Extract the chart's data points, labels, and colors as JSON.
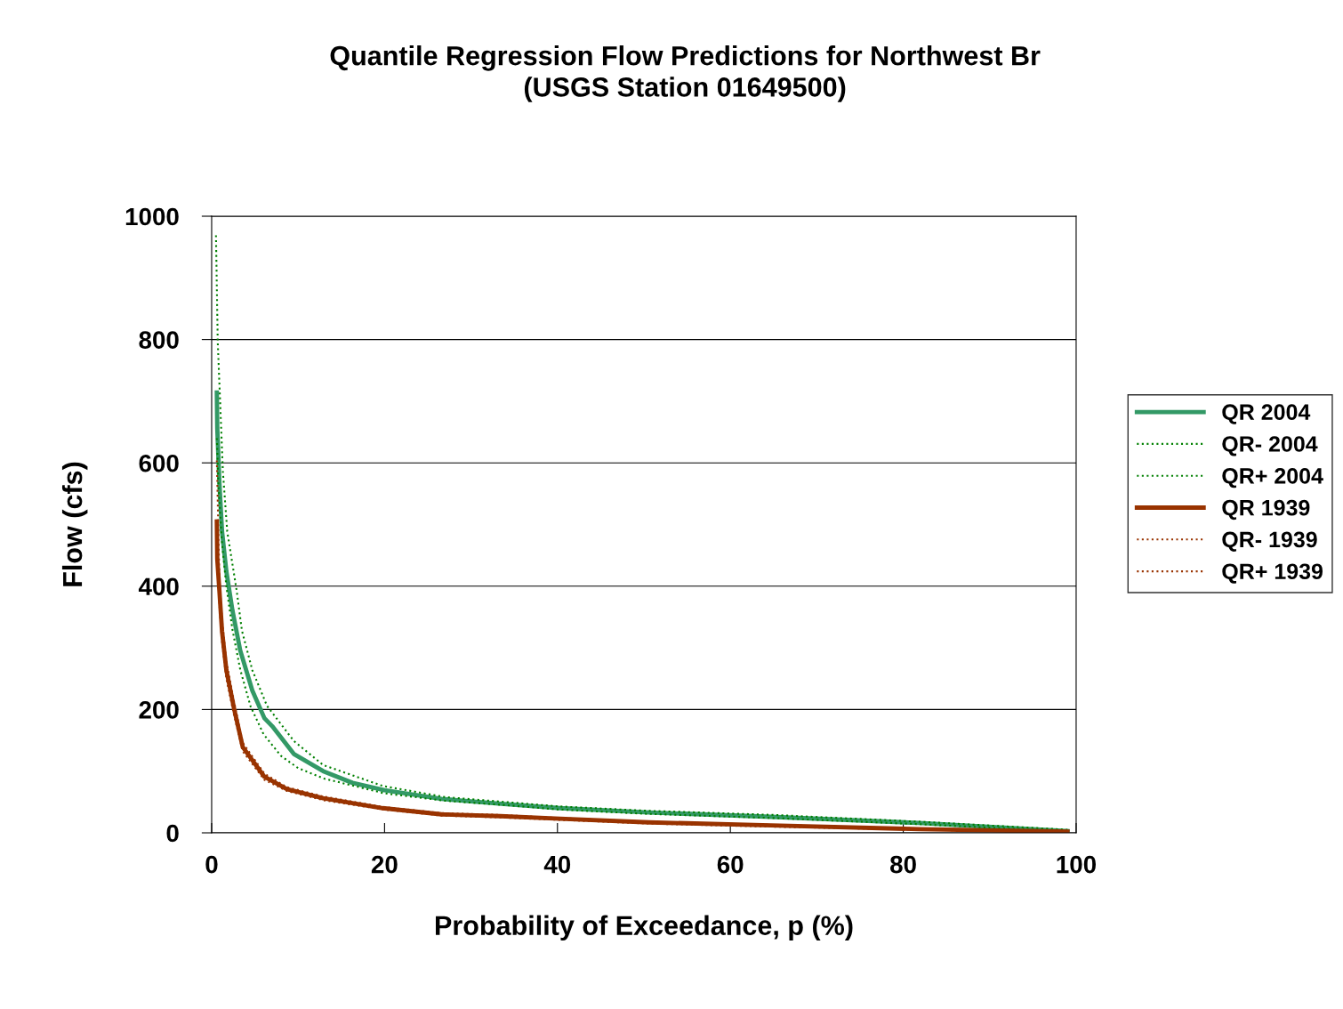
{
  "chart_data": {
    "type": "line",
    "title": "Quantile Regression Flow Predictions for Northwest Br\n(USGS Station 01649500)",
    "xlabel": "Probability of Exceedance, p (%)",
    "ylabel": "Flow (cfs)",
    "xlim": [
      0,
      100
    ],
    "ylim": [
      0,
      1000
    ],
    "xticks": [
      0,
      20,
      40,
      60,
      80,
      100
    ],
    "yticks": [
      0,
      200,
      400,
      600,
      800,
      1000
    ],
    "grid": "y",
    "legend": "right",
    "marker": "none",
    "series": [
      {
        "name": "QR 2004",
        "color": "#339966",
        "line_style": "solid",
        "x": [
          0.6,
          0.65,
          0.9,
          1.2,
          1.7,
          2.4,
          3.3,
          4.7,
          6.1,
          7.0,
          9.5,
          12.9,
          16.3,
          20,
          26.6,
          33.5,
          40.3,
          50.6,
          64.7,
          81.8,
          99
        ],
        "values": [
          714,
          656,
          566,
          489,
          424,
          361,
          296,
          231,
          186,
          173,
          128,
          100,
          81,
          69,
          55,
          47,
          40,
          33,
          26,
          16,
          3
        ]
      },
      {
        "name": "QR- 2004",
        "color": "#008000",
        "line_style": "dotted",
        "x": [
          0.6,
          0.8,
          1.2,
          1.7,
          2.4,
          3.3,
          4.5,
          6,
          8,
          10,
          13,
          20,
          27,
          34,
          40,
          50,
          65,
          82,
          99
        ],
        "values": [
          640,
          560,
          470,
          400,
          330,
          265,
          205,
          160,
          125,
          105,
          88,
          64,
          52,
          45,
          38,
          31,
          24,
          14,
          2
        ]
      },
      {
        "name": "QR+ 2004",
        "color": "#008000",
        "line_style": "dotted",
        "x": [
          0.5,
          0.7,
          1.3,
          1.8,
          2.9,
          3.5,
          4.7,
          6.4,
          9.5,
          12.9,
          19.8,
          27,
          34,
          40,
          50,
          65,
          82,
          99
        ],
        "values": [
          969,
          798,
          586,
          489,
          392,
          328,
          264,
          206,
          149,
          110,
          76,
          58,
          50,
          43,
          36,
          29,
          18,
          5
        ]
      },
      {
        "name": "QR 1939",
        "color": "#993300",
        "line_style": "solid",
        "x": [
          0.6,
          0.65,
          0.9,
          1.2,
          1.7,
          2.6,
          3.6,
          6.1,
          8.7,
          12.9,
          19.8,
          26.6,
          33.4,
          40.3,
          50.6,
          64.7,
          81.8,
          99
        ],
        "values": [
          505,
          444,
          392,
          327,
          264,
          201,
          139,
          91,
          71,
          56,
          40,
          30,
          27,
          23,
          17,
          12,
          6,
          2
        ]
      },
      {
        "name": "QR- 1939",
        "color": "#993300",
        "line_style": "dotted",
        "x": [
          0.6,
          0.9,
          1.2,
          1.7,
          2.6,
          3.6,
          6.1,
          8.7,
          12.9,
          19.8,
          26.6,
          33.4,
          40.3,
          50.6,
          64.7,
          81.8,
          99
        ],
        "values": [
          470,
          370,
          310,
          250,
          190,
          132,
          86,
          68,
          53,
          38,
          28,
          25,
          21,
          15,
          10,
          5,
          1
        ]
      },
      {
        "name": "QR+ 1939",
        "color": "#993300",
        "line_style": "dotted",
        "x": [
          0.6,
          0.9,
          1.2,
          1.7,
          2.6,
          3.6,
          6.1,
          8.7,
          12.9,
          19.8,
          26.6,
          33.4,
          40.3,
          50.6,
          64.7,
          81.8,
          99
        ],
        "values": [
          604,
          410,
          345,
          278,
          212,
          146,
          96,
          74,
          59,
          42,
          32,
          29,
          24,
          18,
          13,
          7,
          3
        ]
      }
    ]
  }
}
